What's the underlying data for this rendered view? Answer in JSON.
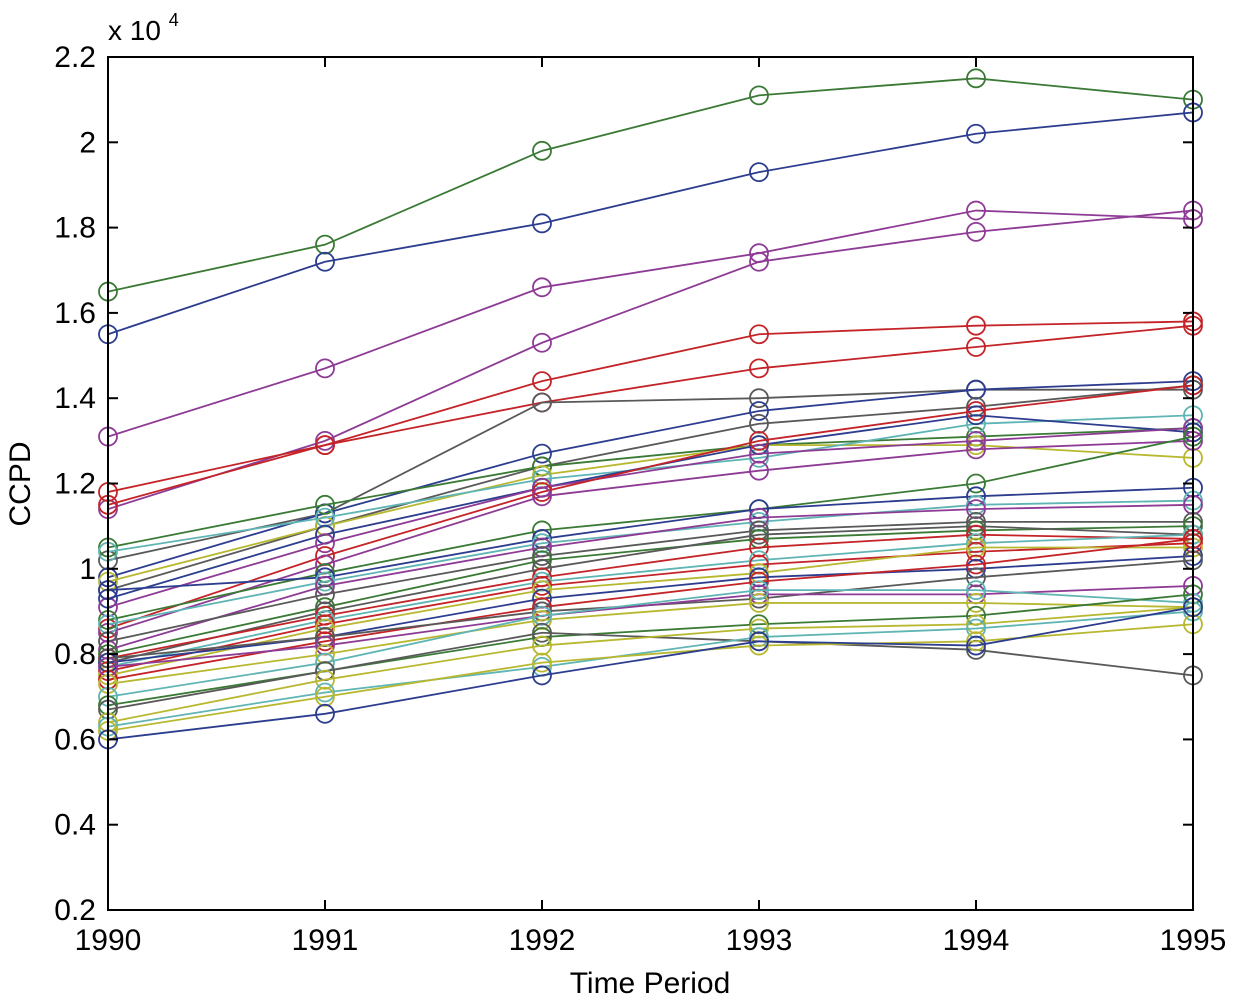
{
  "chart_data": {
    "type": "line",
    "xlabel": "Time Period",
    "ylabel": "CCPD",
    "multiplier_label": "x 10",
    "multiplier_exponent": "4",
    "x": [
      1990,
      1991,
      1992,
      1993,
      1994,
      1995
    ],
    "x_tick_labels": [
      "1990",
      "1991",
      "1992",
      "1993",
      "1994",
      "1995"
    ],
    "xlim": [
      1990,
      1995
    ],
    "ylim": [
      0.2,
      2.2
    ],
    "y_ticks": [
      0.2,
      0.4,
      0.6,
      0.8,
      1.0,
      1.2,
      1.4,
      1.6,
      1.8,
      2.0,
      2.2
    ],
    "y_tick_labels": [
      "0.2",
      "0.4",
      "0.6",
      "0.8",
      "1",
      "1.2",
      "1.4",
      "1.6",
      "1.8",
      "2",
      "2.2"
    ],
    "y_scale_factor": 10000,
    "marker": "circle",
    "grid": false,
    "series_colors": {
      "green": "#3a7a35",
      "blue": "#2c3d8f",
      "purple": "#8e3b96",
      "red": "#c42328",
      "gray": "#595959",
      "cyan": "#5fb4b4",
      "olive": "#b8b830"
    },
    "series": [
      {
        "color": "#3a7a35",
        "values": [
          1.65,
          1.76,
          1.98,
          2.11,
          2.15,
          2.1
        ]
      },
      {
        "color": "#2c3d8f",
        "values": [
          1.55,
          1.72,
          1.81,
          1.93,
          2.02,
          2.07
        ]
      },
      {
        "color": "#8e3b96",
        "values": [
          1.31,
          1.47,
          1.66,
          1.74,
          1.84,
          1.82
        ]
      },
      {
        "color": "#8e3b96",
        "values": [
          1.14,
          1.3,
          1.53,
          1.72,
          1.79,
          1.84
        ]
      },
      {
        "color": "#c42328",
        "values": [
          1.18,
          1.29,
          1.44,
          1.55,
          1.57,
          1.58
        ]
      },
      {
        "color": "#c42328",
        "values": [
          1.15,
          1.29,
          1.39,
          1.47,
          1.52,
          1.57
        ]
      },
      {
        "color": "#595959",
        "values": [
          1.02,
          1.13,
          1.39,
          1.4,
          1.42,
          1.42
        ]
      },
      {
        "color": "#2c3d8f",
        "values": [
          0.98,
          1.13,
          1.27,
          1.37,
          1.42,
          1.44
        ]
      },
      {
        "color": "#595959",
        "values": [
          0.95,
          1.1,
          1.24,
          1.34,
          1.38,
          1.43
        ]
      },
      {
        "color": "#3a7a35",
        "values": [
          1.05,
          1.15,
          1.24,
          1.29,
          1.31,
          1.33
        ]
      },
      {
        "color": "#b8b830",
        "values": [
          0.97,
          1.1,
          1.22,
          1.29,
          1.29,
          1.26
        ]
      },
      {
        "color": "#5fb4b4",
        "values": [
          1.04,
          1.12,
          1.21,
          1.26,
          1.34,
          1.36
        ]
      },
      {
        "color": "#2c3d8f",
        "values": [
          0.93,
          1.08,
          1.19,
          1.29,
          1.36,
          1.32
        ]
      },
      {
        "color": "#8e3b96",
        "values": [
          0.91,
          1.06,
          1.19,
          1.27,
          1.3,
          1.33
        ]
      },
      {
        "color": "#c42328",
        "values": [
          0.86,
          1.03,
          1.18,
          1.3,
          1.37,
          1.43
        ]
      },
      {
        "color": "#8e3b96",
        "values": [
          0.85,
          1.01,
          1.17,
          1.23,
          1.28,
          1.3
        ]
      },
      {
        "color": "#3a7a35",
        "values": [
          0.88,
          0.99,
          1.09,
          1.14,
          1.2,
          1.31
        ]
      },
      {
        "color": "#2c3d8f",
        "values": [
          0.95,
          0.98,
          1.07,
          1.14,
          1.17,
          1.19
        ]
      },
      {
        "color": "#5fb4b4",
        "values": [
          0.87,
          0.97,
          1.06,
          1.11,
          1.15,
          1.16
        ]
      },
      {
        "color": "#8e3b96",
        "values": [
          0.81,
          0.96,
          1.05,
          1.12,
          1.14,
          1.15
        ]
      },
      {
        "color": "#595959",
        "values": [
          0.83,
          0.94,
          1.03,
          1.09,
          1.11,
          1.11
        ]
      },
      {
        "color": "#3a7a35",
        "values": [
          0.8,
          0.91,
          1.02,
          1.07,
          1.09,
          1.1
        ]
      },
      {
        "color": "#595959",
        "values": [
          0.78,
          0.9,
          1.0,
          1.08,
          1.1,
          1.08
        ]
      },
      {
        "color": "#c42328",
        "values": [
          0.79,
          0.89,
          0.98,
          1.05,
          1.08,
          1.07
        ]
      },
      {
        "color": "#5fb4b4",
        "values": [
          0.77,
          0.88,
          0.97,
          1.02,
          1.06,
          1.08
        ]
      },
      {
        "color": "#c42328",
        "values": [
          0.76,
          0.87,
          0.96,
          1.01,
          1.04,
          1.06
        ]
      },
      {
        "color": "#b8b830",
        "values": [
          0.75,
          0.86,
          0.95,
          0.99,
          1.05,
          1.05
        ]
      },
      {
        "color": "#2c3d8f",
        "values": [
          0.78,
          0.84,
          0.93,
          0.98,
          1.0,
          1.03
        ]
      },
      {
        "color": "#c42328",
        "values": [
          0.74,
          0.83,
          0.91,
          0.97,
          1.01,
          1.07
        ]
      },
      {
        "color": "#595959",
        "values": [
          0.79,
          0.84,
          0.9,
          0.93,
          0.98,
          1.02
        ]
      },
      {
        "color": "#8e3b96",
        "values": [
          0.77,
          0.82,
          0.89,
          0.94,
          0.94,
          0.96
        ]
      },
      {
        "color": "#b8b830",
        "values": [
          0.73,
          0.8,
          0.88,
          0.92,
          0.92,
          0.91
        ]
      },
      {
        "color": "#5fb4b4",
        "values": [
          0.7,
          0.78,
          0.89,
          0.95,
          0.95,
          0.92
        ]
      },
      {
        "color": "#3a7a35",
        "values": [
          0.68,
          0.76,
          0.84,
          0.87,
          0.89,
          0.94
        ]
      },
      {
        "color": "#595959",
        "values": [
          0.67,
          0.76,
          0.85,
          0.83,
          0.81,
          0.75
        ]
      },
      {
        "color": "#b8b830",
        "values": [
          0.64,
          0.74,
          0.82,
          0.86,
          0.87,
          0.91
        ]
      },
      {
        "color": "#5fb4b4",
        "values": [
          0.63,
          0.71,
          0.77,
          0.84,
          0.86,
          0.9
        ]
      },
      {
        "color": "#b8b830",
        "values": [
          0.62,
          0.7,
          0.78,
          0.82,
          0.83,
          0.87
        ]
      },
      {
        "color": "#2c3d8f",
        "values": [
          0.6,
          0.66,
          0.75,
          0.83,
          0.82,
          0.91
        ]
      }
    ]
  }
}
